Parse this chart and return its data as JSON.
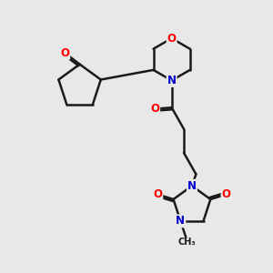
{
  "bg_color": "#e8e8e8",
  "bond_color": "#1a1a1a",
  "bond_width": 1.8,
  "atom_colors": {
    "O": "#ff0000",
    "N": "#0000cc",
    "C": "#1a1a1a"
  },
  "font_size_atom": 8.5,
  "fig_width": 3.0,
  "fig_height": 3.0,
  "dpi": 100
}
